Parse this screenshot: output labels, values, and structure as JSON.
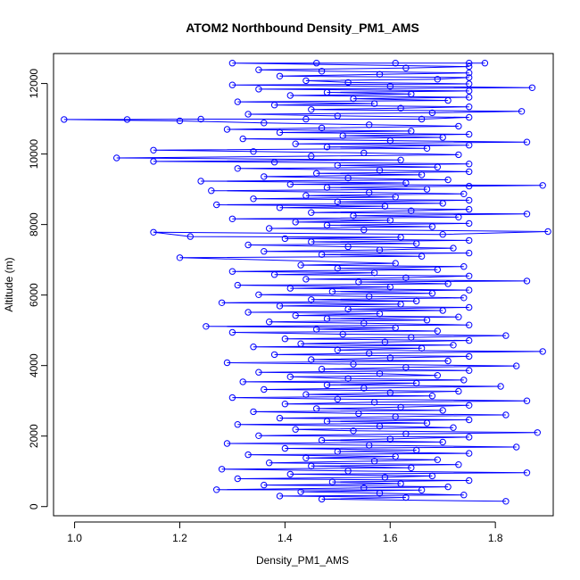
{
  "chart_data": {
    "type": "scatter",
    "title": "ATOM2 Northbound Density_PM1_AMS",
    "xlabel": "Density_PM1_AMS",
    "ylabel": "Altitude (m)",
    "xlim": [
      0.96,
      1.91
    ],
    "ylim": [
      -260,
      12850
    ],
    "x_ticks": [
      "1.0",
      "1.2",
      "1.4",
      "1.6",
      "1.8"
    ],
    "x_tick_values": [
      1.0,
      1.2,
      1.4,
      1.6,
      1.8
    ],
    "y_ticks": [
      "0",
      "2000",
      "4000",
      "6000",
      "8000",
      "10000",
      "12000"
    ],
    "y_tick_values": [
      0,
      2000,
      4000,
      6000,
      8000,
      10000,
      12000
    ],
    "series": [
      {
        "marker": "open-circle",
        "line": true,
        "color": "#0000ff",
        "points": [
          [
            1.82,
            150
          ],
          [
            1.47,
            210
          ],
          [
            1.63,
            260
          ],
          [
            1.39,
            300
          ],
          [
            1.74,
            330
          ],
          [
            1.58,
            380
          ],
          [
            1.43,
            420
          ],
          [
            1.66,
            470
          ],
          [
            1.27,
            480
          ],
          [
            1.55,
            530
          ],
          [
            1.71,
            560
          ],
          [
            1.36,
            610
          ],
          [
            1.62,
            650
          ],
          [
            1.49,
            700
          ],
          [
            1.75,
            740
          ],
          [
            1.31,
            790
          ],
          [
            1.59,
            830
          ],
          [
            1.68,
            870
          ],
          [
            1.41,
            920
          ],
          [
            1.86,
            960
          ],
          [
            1.52,
            1010
          ],
          [
            1.28,
            1060
          ],
          [
            1.64,
            1100
          ],
          [
            1.45,
            1150
          ],
          [
            1.73,
            1190
          ],
          [
            1.37,
            1240
          ],
          [
            1.57,
            1290
          ],
          [
            1.69,
            1330
          ],
          [
            1.44,
            1380
          ],
          [
            1.61,
            1420
          ],
          [
            1.33,
            1470
          ],
          [
            1.75,
            1510
          ],
          [
            1.5,
            1560
          ],
          [
            1.65,
            1600
          ],
          [
            1.4,
            1650
          ],
          [
            1.84,
            1690
          ],
          [
            1.56,
            1740
          ],
          [
            1.29,
            1790
          ],
          [
            1.7,
            1830
          ],
          [
            1.47,
            1880
          ],
          [
            1.6,
            1920
          ],
          [
            1.75,
            1970
          ],
          [
            1.35,
            2010
          ],
          [
            1.63,
            2060
          ],
          [
            1.88,
            2100
          ],
          [
            1.53,
            2150
          ],
          [
            1.42,
            2190
          ],
          [
            1.72,
            2240
          ],
          [
            1.58,
            2280
          ],
          [
            1.31,
            2330
          ],
          [
            1.67,
            2370
          ],
          [
            1.48,
            2420
          ],
          [
            1.75,
            2460
          ],
          [
            1.39,
            2510
          ],
          [
            1.61,
            2550
          ],
          [
            1.82,
            2600
          ],
          [
            1.54,
            2640
          ],
          [
            1.34,
            2690
          ],
          [
            1.7,
            2730
          ],
          [
            1.46,
            2780
          ],
          [
            1.62,
            2820
          ],
          [
            1.75,
            2870
          ],
          [
            1.4,
            2910
          ],
          [
            1.57,
            2960
          ],
          [
            1.86,
            3000
          ],
          [
            1.5,
            3050
          ],
          [
            1.3,
            3090
          ],
          [
            1.68,
            3140
          ],
          [
            1.44,
            3180
          ],
          [
            1.6,
            3230
          ],
          [
            1.73,
            3270
          ],
          [
            1.36,
            3320
          ],
          [
            1.55,
            3360
          ],
          [
            1.81,
            3410
          ],
          [
            1.48,
            3450
          ],
          [
            1.65,
            3500
          ],
          [
            1.32,
            3540
          ],
          [
            1.74,
            3590
          ],
          [
            1.52,
            3630
          ],
          [
            1.41,
            3680
          ],
          [
            1.69,
            3720
          ],
          [
            1.58,
            3770
          ],
          [
            1.35,
            3810
          ],
          [
            1.75,
            3860
          ],
          [
            1.47,
            3900
          ],
          [
            1.63,
            3950
          ],
          [
            1.84,
            3990
          ],
          [
            1.53,
            4040
          ],
          [
            1.29,
            4080
          ],
          [
            1.71,
            4130
          ],
          [
            1.45,
            4170
          ],
          [
            1.6,
            4220
          ],
          [
            1.75,
            4260
          ],
          [
            1.38,
            4310
          ],
          [
            1.56,
            4350
          ],
          [
            1.89,
            4400
          ],
          [
            1.5,
            4440
          ],
          [
            1.66,
            4490
          ],
          [
            1.34,
            4530
          ],
          [
            1.72,
            4580
          ],
          [
            1.43,
            4620
          ],
          [
            1.59,
            4670
          ],
          [
            1.75,
            4710
          ],
          [
            1.4,
            4760
          ],
          [
            1.64,
            4800
          ],
          [
            1.82,
            4850
          ],
          [
            1.51,
            4890
          ],
          [
            1.3,
            4940
          ],
          [
            1.69,
            4980
          ],
          [
            1.46,
            5030
          ],
          [
            1.61,
            5070
          ],
          [
            1.25,
            5110
          ],
          [
            1.75,
            5150
          ],
          [
            1.55,
            5200
          ],
          [
            1.37,
            5240
          ],
          [
            1.67,
            5290
          ],
          [
            1.48,
            5330
          ],
          [
            1.73,
            5380
          ],
          [
            1.42,
            5420
          ],
          [
            1.58,
            5470
          ],
          [
            1.33,
            5510
          ],
          [
            1.7,
            5560
          ],
          [
            1.52,
            5600
          ],
          [
            1.75,
            5650
          ],
          [
            1.39,
            5690
          ],
          [
            1.62,
            5740
          ],
          [
            1.28,
            5780
          ],
          [
            1.65,
            5830
          ],
          [
            1.45,
            5870
          ],
          [
            1.74,
            5920
          ],
          [
            1.56,
            5960
          ],
          [
            1.35,
            6010
          ],
          [
            1.68,
            6050
          ],
          [
            1.49,
            6100
          ],
          [
            1.75,
            6140
          ],
          [
            1.41,
            6190
          ],
          [
            1.6,
            6230
          ],
          [
            1.31,
            6280
          ],
          [
            1.71,
            6320
          ],
          [
            1.54,
            6370
          ],
          [
            1.86,
            6400
          ],
          [
            1.44,
            6450
          ],
          [
            1.63,
            6490
          ],
          [
            1.75,
            6540
          ],
          [
            1.38,
            6580
          ],
          [
            1.57,
            6630
          ],
          [
            1.3,
            6670
          ],
          [
            1.69,
            6720
          ],
          [
            1.5,
            6760
          ],
          [
            1.74,
            6810
          ],
          [
            1.43,
            6850
          ],
          [
            1.61,
            6900
          ],
          [
            1.2,
            7060
          ],
          [
            1.66,
            7100
          ],
          [
            1.47,
            7150
          ],
          [
            1.75,
            7190
          ],
          [
            1.36,
            7240
          ],
          [
            1.58,
            7280
          ],
          [
            1.72,
            7330
          ],
          [
            1.52,
            7370
          ],
          [
            1.33,
            7420
          ],
          [
            1.65,
            7460
          ],
          [
            1.45,
            7510
          ],
          [
            1.75,
            7550
          ],
          [
            1.4,
            7600
          ],
          [
            1.62,
            7640
          ],
          [
            1.22,
            7660
          ],
          [
            1.15,
            7780
          ],
          [
            1.7,
            7720
          ],
          [
            1.9,
            7800
          ],
          [
            1.55,
            7850
          ],
          [
            1.37,
            7890
          ],
          [
            1.68,
            7940
          ],
          [
            1.48,
            7980
          ],
          [
            1.75,
            8030
          ],
          [
            1.42,
            8070
          ],
          [
            1.6,
            8120
          ],
          [
            1.3,
            8160
          ],
          [
            1.73,
            8210
          ],
          [
            1.53,
            8250
          ],
          [
            1.86,
            8300
          ],
          [
            1.45,
            8340
          ],
          [
            1.64,
            8390
          ],
          [
            1.75,
            8430
          ],
          [
            1.39,
            8480
          ],
          [
            1.59,
            8520
          ],
          [
            1.27,
            8560
          ],
          [
            1.7,
            8600
          ],
          [
            1.5,
            8640
          ],
          [
            1.75,
            8690
          ],
          [
            1.34,
            8730
          ],
          [
            1.61,
            8780
          ],
          [
            1.44,
            8820
          ],
          [
            1.74,
            8870
          ],
          [
            1.56,
            8910
          ],
          [
            1.26,
            8960
          ],
          [
            1.67,
            9000
          ],
          [
            1.48,
            9050
          ],
          [
            1.75,
            9090
          ],
          [
            1.89,
            9110
          ],
          [
            1.41,
            9140
          ],
          [
            1.63,
            9180
          ],
          [
            1.24,
            9230
          ],
          [
            1.71,
            9270
          ],
          [
            1.52,
            9320
          ],
          [
            1.36,
            9360
          ],
          [
            1.66,
            9410
          ],
          [
            1.46,
            9450
          ],
          [
            1.75,
            9500
          ],
          [
            1.58,
            9540
          ],
          [
            1.31,
            9590
          ],
          [
            1.69,
            9630
          ],
          [
            1.5,
            9680
          ],
          [
            1.75,
            9720
          ],
          [
            1.38,
            9770
          ],
          [
            1.15,
            9790
          ],
          [
            1.62,
            9830
          ],
          [
            1.08,
            9890
          ],
          [
            1.45,
            9940
          ],
          [
            1.73,
            9980
          ],
          [
            1.55,
            10030
          ],
          [
            1.34,
            10070
          ],
          [
            1.15,
            10110
          ],
          [
            1.67,
            10160
          ],
          [
            1.48,
            10200
          ],
          [
            1.75,
            10250
          ],
          [
            1.42,
            10290
          ],
          [
            1.86,
            10340
          ],
          [
            1.6,
            10380
          ],
          [
            1.32,
            10430
          ],
          [
            1.7,
            10470
          ],
          [
            1.51,
            10520
          ],
          [
            1.75,
            10560
          ],
          [
            1.39,
            10610
          ],
          [
            1.64,
            10650
          ],
          [
            1.29,
            10700
          ],
          [
            1.47,
            10740
          ],
          [
            1.73,
            10790
          ],
          [
            1.56,
            10830
          ],
          [
            1.36,
            10880
          ],
          [
            1.2,
            10940
          ],
          [
            0.98,
            10980
          ],
          [
            1.1,
            10980
          ],
          [
            1.24,
            10990
          ],
          [
            1.44,
            10990
          ],
          [
            1.66,
            10990
          ],
          [
            1.75,
            11040
          ],
          [
            1.5,
            11080
          ],
          [
            1.33,
            11130
          ],
          [
            1.68,
            11170
          ],
          [
            1.85,
            11210
          ],
          [
            1.45,
            11260
          ],
          [
            1.62,
            11300
          ],
          [
            1.75,
            11340
          ],
          [
            1.38,
            11390
          ],
          [
            1.57,
            11430
          ],
          [
            1.31,
            11480
          ],
          [
            1.71,
            11520
          ],
          [
            1.53,
            11570
          ],
          [
            1.75,
            11610
          ],
          [
            1.41,
            11660
          ],
          [
            1.64,
            11700
          ],
          [
            1.48,
            11750
          ],
          [
            1.75,
            11790
          ],
          [
            1.35,
            11840
          ],
          [
            1.87,
            11880
          ],
          [
            1.6,
            11920
          ],
          [
            1.3,
            11960
          ],
          [
            1.75,
            11990
          ],
          [
            1.52,
            12030
          ],
          [
            1.44,
            12080
          ],
          [
            1.69,
            12120
          ],
          [
            1.75,
            12170
          ],
          [
            1.39,
            12210
          ],
          [
            1.58,
            12260
          ],
          [
            1.75,
            12300
          ],
          [
            1.47,
            12350
          ],
          [
            1.35,
            12390
          ],
          [
            1.63,
            12440
          ],
          [
            1.75,
            12480
          ],
          [
            1.3,
            12580
          ],
          [
            1.46,
            12580
          ],
          [
            1.61,
            12580
          ],
          [
            1.75,
            12580
          ],
          [
            1.78,
            12580
          ]
        ]
      }
    ]
  }
}
